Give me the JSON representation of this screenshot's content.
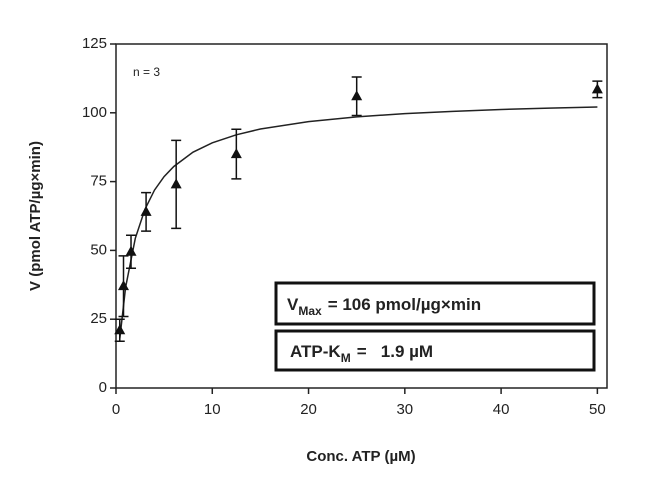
{
  "chart_data": {
    "type": "scatter",
    "x_label": "Conc. ATP (µM)",
    "y_label": "V (pmol ATP/µg×min)",
    "xlim": [
      0,
      51
    ],
    "ylim": [
      0,
      125
    ],
    "xticks": [
      0,
      10,
      20,
      30,
      40,
      50
    ],
    "yticks": [
      0,
      25,
      50,
      75,
      100,
      125
    ],
    "series": [
      {
        "style": "points",
        "color": "#111111",
        "x": [
          0.39,
          0.78,
          1.56,
          3.125,
          6.25,
          12.5,
          25,
          50
        ],
        "values": [
          21,
          37,
          49.5,
          64,
          74,
          85,
          106,
          108.5
        ],
        "errors": [
          4,
          11,
          6,
          7,
          16,
          9,
          7,
          3
        ]
      },
      {
        "style": "line",
        "color": "#222222",
        "x": [
          0.39,
          1,
          2,
          3,
          4,
          5,
          6,
          8,
          10,
          12.5,
          15,
          20,
          25,
          30,
          35,
          40,
          45,
          50
        ],
        "values": [
          18,
          36.6,
          54.4,
          64.9,
          71.9,
          76.8,
          80.5,
          85.7,
          89.1,
          92,
          94.1,
          96.8,
          98.5,
          99.7,
          100.5,
          101.2,
          101.7,
          102.1
        ]
      }
    ],
    "annotations": {
      "n": "n = 3",
      "vmax": {
        "main": "V",
        "sub": "Max",
        "rest": "= 106 pmol/µg×min"
      },
      "km": {
        "main": "ATP-K",
        "sub": "M",
        "rest": "=   1.9 µM"
      }
    }
  }
}
